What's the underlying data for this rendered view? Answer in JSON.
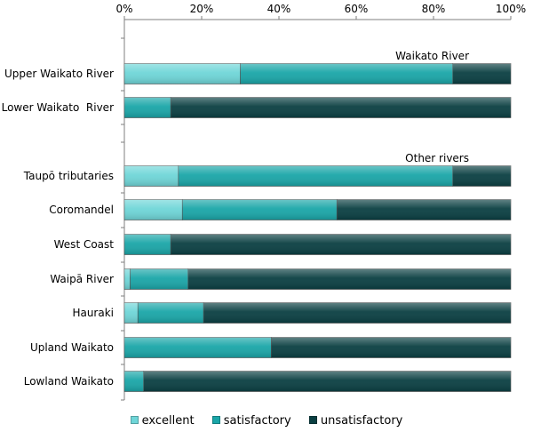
{
  "chart_data": {
    "type": "bar",
    "orientation": "horizontal",
    "stacked": "percent",
    "x_axis": {
      "position": "top",
      "ticks": [
        "0%",
        "20%",
        "40%",
        "60%",
        "80%",
        "100%"
      ],
      "range": [
        0,
        100
      ]
    },
    "groups": [
      {
        "label": "Waikato River",
        "categories": [
          "Upper Waikato River",
          "Lower Waikato  River"
        ]
      },
      {
        "label": "Other rivers",
        "categories": [
          "Taupō tributaries",
          "Coromandel",
          "West Coast",
          "Waipā River",
          "Hauraki",
          "Upland Waikato",
          "Lowland Waikato"
        ]
      }
    ],
    "categories": [
      "Upper Waikato River",
      "Lower Waikato  River",
      "Taupō tributaries",
      "Coromandel",
      "West Coast",
      "Waipā River",
      "Hauraki",
      "Upland Waikato",
      "Lowland Waikato"
    ],
    "series": [
      {
        "name": "excellent",
        "color": "#6fd6d8",
        "values": [
          30,
          0,
          14,
          15,
          0,
          1.5,
          3.5,
          0,
          0
        ]
      },
      {
        "name": "satisfactory",
        "color": "#1aa6a8",
        "values": [
          55,
          12,
          71,
          40,
          12,
          15,
          17,
          38,
          5
        ]
      },
      {
        "name": "unsatisfactory",
        "color": "#0a3f42",
        "values": [
          15,
          88,
          15,
          45,
          88,
          83.5,
          79.5,
          62,
          95
        ]
      }
    ],
    "legend_position": "bottom",
    "grid": false
  }
}
